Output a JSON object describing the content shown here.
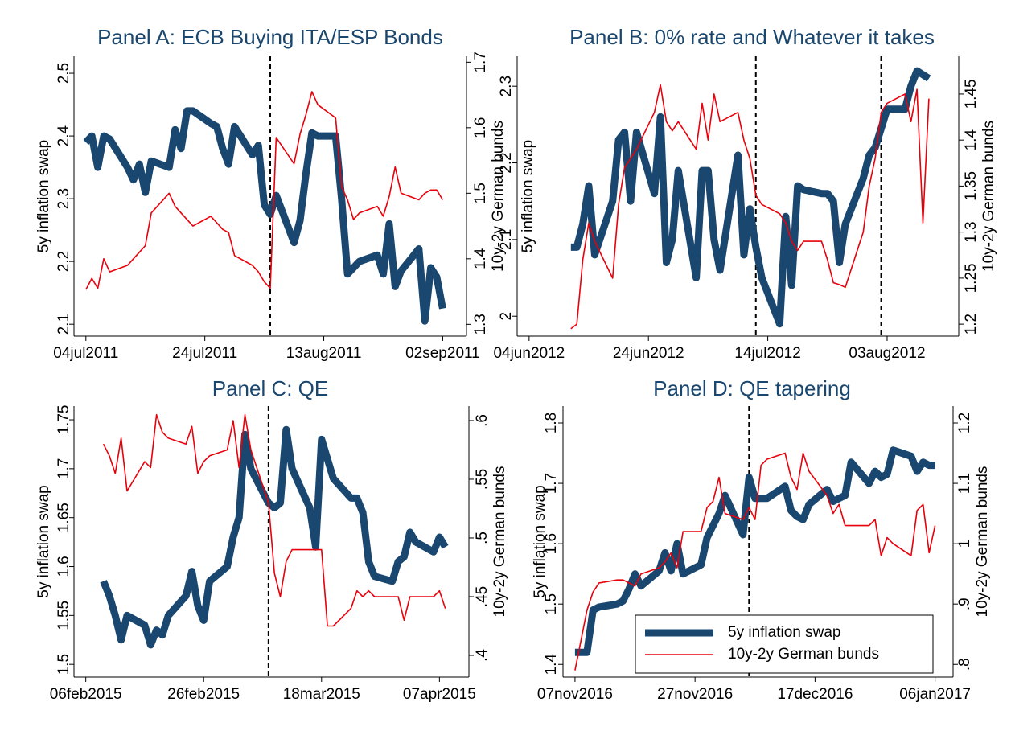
{
  "chart_data": [
    {
      "type": "line",
      "title": "Panel A: ECB Buying ITA/ESP Bonds",
      "ylabel": "5y inflation swap",
      "y2label": "10y-2y German bunds",
      "x": [
        "2011-07-04",
        "2011-07-05",
        "2011-07-06",
        "2011-07-07",
        "2011-07-08",
        "2011-07-11",
        "2011-07-12",
        "2011-07-13",
        "2011-07-14",
        "2011-07-15",
        "2011-07-18",
        "2011-07-19",
        "2011-07-20",
        "2011-07-21",
        "2011-07-22",
        "2011-07-25",
        "2011-07-26",
        "2011-07-27",
        "2011-07-28",
        "2011-07-29",
        "2011-08-01",
        "2011-08-02",
        "2011-08-03",
        "2011-08-04",
        "2011-08-05",
        "2011-08-08",
        "2011-08-09",
        "2011-08-10",
        "2011-08-11",
        "2011-08-12",
        "2011-08-15",
        "2011-08-16",
        "2011-08-17",
        "2011-08-18",
        "2011-08-19",
        "2011-08-22",
        "2011-08-23",
        "2011-08-24",
        "2011-08-25",
        "2011-08-26",
        "2011-08-29",
        "2011-08-30",
        "2011-08-31",
        "2011-09-01",
        "2011-09-02"
      ],
      "series": [
        {
          "name": "5y inflation swap",
          "color": "#1a476f",
          "axis": "y",
          "values": [
            2.39,
            2.4,
            2.35,
            2.4,
            2.395,
            2.35,
            2.33,
            2.355,
            2.31,
            2.36,
            2.35,
            2.41,
            2.38,
            2.44,
            2.44,
            2.42,
            2.415,
            2.38,
            2.355,
            2.415,
            2.37,
            2.385,
            2.29,
            2.275,
            2.305,
            2.23,
            2.265,
            2.34,
            2.405,
            2.4,
            2.4,
            2.3,
            2.18,
            2.19,
            2.2,
            2.21,
            2.18,
            2.26,
            2.16,
            2.185,
            2.22,
            2.105,
            2.19,
            2.175,
            2.125
          ]
        },
        {
          "name": "10y-2y German bunds",
          "color": "#e8000b",
          "axis": "y2",
          "values": [
            1.353,
            1.37,
            1.355,
            1.4,
            1.38,
            1.39,
            1.4,
            1.41,
            1.42,
            1.47,
            1.5,
            1.48,
            1.47,
            1.46,
            1.45,
            1.465,
            1.455,
            1.445,
            1.44,
            1.405,
            1.39,
            1.38,
            1.365,
            1.355,
            1.585,
            1.545,
            1.59,
            1.62,
            1.655,
            1.635,
            1.615,
            1.51,
            1.49,
            1.46,
            1.47,
            1.48,
            1.465,
            1.495,
            1.54,
            1.5,
            1.49,
            1.5,
            1.505,
            1.505,
            1.49
          ]
        }
      ],
      "xlim": [
        "2011-07-02",
        "2011-09-06"
      ],
      "xticks": [
        {
          "value": "2011-07-04",
          "label": "04jul2011"
        },
        {
          "value": "2011-07-24",
          "label": "24jul2011"
        },
        {
          "value": "2011-08-13",
          "label": "13aug2011"
        },
        {
          "value": "2011-09-02",
          "label": "02sep2011"
        }
      ],
      "ylim": [
        2.081,
        2.527
      ],
      "yticks": [
        2.1,
        2.2,
        2.3,
        2.4,
        2.5
      ],
      "y2lim": [
        1.282,
        1.709
      ],
      "y2ticks": [
        1.3,
        1.4,
        1.5,
        1.6,
        1.7
      ],
      "vlines": [
        "2011-08-04"
      ]
    },
    {
      "type": "line",
      "title": "Panel B: 0% rate and Whatever it takes",
      "ylabel": "5y inflation swap",
      "y2label": "10y-2y German bunds",
      "x": [
        "2012-06-11",
        "2012-06-12",
        "2012-06-13",
        "2012-06-14",
        "2012-06-15",
        "2012-06-18",
        "2012-06-19",
        "2012-06-20",
        "2012-06-21",
        "2012-06-22",
        "2012-06-25",
        "2012-06-26",
        "2012-06-27",
        "2012-06-28",
        "2012-06-29",
        "2012-07-02",
        "2012-07-03",
        "2012-07-04",
        "2012-07-05",
        "2012-07-06",
        "2012-07-09",
        "2012-07-10",
        "2012-07-11",
        "2012-07-12",
        "2012-07-13",
        "2012-07-16",
        "2012-07-17",
        "2012-07-18",
        "2012-07-19",
        "2012-07-20",
        "2012-07-23",
        "2012-07-24",
        "2012-07-25",
        "2012-07-26",
        "2012-07-27",
        "2012-07-30",
        "2012-07-31",
        "2012-08-01",
        "2012-08-02",
        "2012-08-03",
        "2012-08-06",
        "2012-08-07",
        "2012-08-08",
        "2012-08-09",
        "2012-08-10"
      ],
      "series": [
        {
          "name": "5y inflation swap",
          "color": "#1a476f",
          "axis": "y",
          "values": [
            2.09,
            2.09,
            2.12,
            2.17,
            2.08,
            2.15,
            2.23,
            2.24,
            2.15,
            2.24,
            2.16,
            2.26,
            2.07,
            2.1,
            2.19,
            2.05,
            2.19,
            2.19,
            2.1,
            2.06,
            2.21,
            2.08,
            2.14,
            2.09,
            2.05,
            1.99,
            2.13,
            2.04,
            2.17,
            2.165,
            2.16,
            2.16,
            2.15,
            2.07,
            2.12,
            2.18,
            2.21,
            2.22,
            2.245,
            2.27,
            2.27,
            2.3,
            2.32,
            2.315,
            2.31
          ]
        },
        {
          "name": "10y-2y German bunds",
          "color": "#e8000b",
          "axis": "y2",
          "values": [
            1.195,
            1.2,
            1.27,
            1.31,
            1.29,
            1.25,
            1.33,
            1.37,
            1.38,
            1.39,
            1.43,
            1.46,
            1.42,
            1.41,
            1.42,
            1.39,
            1.44,
            1.4,
            1.45,
            1.42,
            1.43,
            1.4,
            1.38,
            1.34,
            1.33,
            1.32,
            1.31,
            1.29,
            1.28,
            1.29,
            1.29,
            1.27,
            1.245,
            1.243,
            1.24,
            1.3,
            1.35,
            1.38,
            1.43,
            1.44,
            1.45,
            1.42,
            1.455,
            1.31,
            1.445
          ]
        }
      ],
      "xlim": [
        "2012-06-02",
        "2012-08-15"
      ],
      "xticks": [
        {
          "value": "2012-06-04",
          "label": "04jun2012"
        },
        {
          "value": "2012-06-24",
          "label": "24jun2012"
        },
        {
          "value": "2012-07-14",
          "label": "14jul2012"
        },
        {
          "value": "2012-08-03",
          "label": "03aug2012"
        }
      ],
      "ylim": [
        1.974,
        2.339
      ],
      "yticks": [
        2,
        2.1,
        2.2,
        2.3
      ],
      "y2lim": [
        1.187,
        1.491
      ],
      "y2ticks": [
        1.2,
        1.25,
        1.3,
        1.35,
        1.4,
        1.45
      ],
      "vlines": [
        "2012-07-12",
        "2012-08-02"
      ]
    },
    {
      "type": "line",
      "title": "Panel C: QE",
      "ylabel": "5y inflation swap",
      "y2label": "10y-2y German bunds",
      "x": [
        "2015-02-09",
        "2015-02-10",
        "2015-02-11",
        "2015-02-12",
        "2015-02-13",
        "2015-02-16",
        "2015-02-17",
        "2015-02-18",
        "2015-02-19",
        "2015-02-20",
        "2015-02-23",
        "2015-02-24",
        "2015-02-25",
        "2015-02-26",
        "2015-02-27",
        "2015-03-02",
        "2015-03-03",
        "2015-03-04",
        "2015-03-05",
        "2015-03-06",
        "2015-03-09",
        "2015-03-10",
        "2015-03-11",
        "2015-03-12",
        "2015-03-13",
        "2015-03-16",
        "2015-03-17",
        "2015-03-18",
        "2015-03-19",
        "2015-03-20",
        "2015-03-23",
        "2015-03-24",
        "2015-03-25",
        "2015-03-26",
        "2015-03-27",
        "2015-03-30",
        "2015-03-31",
        "2015-04-01",
        "2015-04-02",
        "2015-04-03",
        "2015-04-06",
        "2015-04-07",
        "2015-04-08"
      ],
      "series": [
        {
          "name": "5y inflation swap",
          "color": "#1a476f",
          "axis": "y",
          "values": [
            1.585,
            1.57,
            1.55,
            1.525,
            1.55,
            1.54,
            1.52,
            1.535,
            1.53,
            1.55,
            1.57,
            1.595,
            1.56,
            1.545,
            1.585,
            1.6,
            1.63,
            1.65,
            1.735,
            1.7,
            1.665,
            1.66,
            1.665,
            1.74,
            1.7,
            1.66,
            1.62,
            1.73,
            1.71,
            1.69,
            1.67,
            1.67,
            1.655,
            1.605,
            1.59,
            1.585,
            1.605,
            1.61,
            1.635,
            1.625,
            1.615,
            1.63,
            1.62
          ]
        },
        {
          "name": "10y-2y German bunds",
          "color": "#e8000b",
          "axis": "y2",
          "values": [
            0.58,
            0.57,
            0.555,
            0.585,
            0.54,
            0.565,
            0.56,
            0.605,
            0.59,
            0.585,
            0.58,
            0.595,
            0.555,
            0.565,
            0.57,
            0.575,
            0.6,
            0.56,
            0.605,
            0.575,
            0.53,
            0.47,
            0.45,
            0.48,
            0.49,
            0.49,
            0.49,
            0.49,
            0.425,
            0.425,
            0.44,
            0.455,
            0.45,
            0.455,
            0.45,
            0.45,
            0.45,
            0.43,
            0.45,
            0.45,
            0.45,
            0.455,
            0.44
          ]
        }
      ],
      "xlim": [
        "2015-02-04",
        "2015-04-12"
      ],
      "xticks": [
        {
          "value": "2015-02-06",
          "label": "06feb2015"
        },
        {
          "value": "2015-02-26",
          "label": "26feb2015"
        },
        {
          "value": "2015-03-18",
          "label": "18mar2015"
        },
        {
          "value": "2015-04-07",
          "label": "07apr2015"
        }
      ],
      "ylim": [
        1.487,
        1.764
      ],
      "yticks": [
        1.5,
        1.55,
        1.6,
        1.65,
        1.7,
        1.75
      ],
      "y2lim": [
        0.3815,
        0.6123
      ],
      "y2ticks": [
        {
          "value": 0.4,
          "label": ".4"
        },
        {
          "value": 0.45,
          "label": ".45"
        },
        {
          "value": 0.5,
          "label": ".5"
        },
        {
          "value": 0.55,
          "label": ".55"
        },
        {
          "value": 0.6,
          "label": ".6"
        }
      ],
      "vlines": [
        "2015-03-09"
      ]
    },
    {
      "type": "line",
      "title": "Panel D: QE tapering",
      "ylabel": "5y inflation swap",
      "y2label": "10y-2y German bunds",
      "x": [
        "2016-11-07",
        "2016-11-08",
        "2016-11-09",
        "2016-11-10",
        "2016-11-11",
        "2016-11-14",
        "2016-11-15",
        "2016-11-16",
        "2016-11-17",
        "2016-11-18",
        "2016-11-21",
        "2016-11-22",
        "2016-11-23",
        "2016-11-24",
        "2016-11-25",
        "2016-11-28",
        "2016-11-29",
        "2016-11-30",
        "2016-12-01",
        "2016-12-02",
        "2016-12-05",
        "2016-12-06",
        "2016-12-07",
        "2016-12-08",
        "2016-12-09",
        "2016-12-12",
        "2016-12-13",
        "2016-12-14",
        "2016-12-15",
        "2016-12-16",
        "2016-12-19",
        "2016-12-20",
        "2016-12-21",
        "2016-12-22",
        "2016-12-23",
        "2016-12-26",
        "2016-12-27",
        "2016-12-28",
        "2016-12-29",
        "2016-12-30",
        "2017-01-02",
        "2017-01-03",
        "2017-01-04",
        "2017-01-05",
        "2017-01-06"
      ],
      "series": [
        {
          "name": "5y inflation swap",
          "color": "#1a476f",
          "axis": "y",
          "values": [
            1.42,
            1.42,
            1.42,
            1.49,
            1.495,
            1.5,
            1.505,
            1.525,
            1.55,
            1.53,
            1.555,
            1.585,
            1.555,
            1.6,
            1.55,
            1.565,
            1.61,
            1.63,
            1.65,
            1.68,
            1.615,
            1.71,
            1.675,
            1.675,
            1.675,
            1.695,
            1.655,
            1.645,
            1.64,
            1.665,
            1.69,
            1.67,
            1.675,
            1.68,
            1.735,
            1.7,
            1.72,
            1.71,
            1.715,
            1.755,
            1.745,
            1.72,
            1.735,
            1.73,
            1.73
          ]
        },
        {
          "name": "10y-2y German bunds",
          "color": "#e8000b",
          "axis": "y2",
          "values": [
            0.79,
            0.84,
            0.89,
            0.92,
            0.935,
            0.94,
            0.94,
            0.935,
            0.93,
            0.95,
            0.96,
            0.97,
            0.985,
            0.96,
            1.02,
            1.02,
            1.06,
            1.07,
            1.11,
            1.05,
            1.04,
            1.06,
            1.04,
            1.13,
            1.14,
            1.15,
            1.11,
            1.09,
            1.15,
            1.12,
            1.08,
            1.05,
            1.065,
            1.03,
            1.03,
            1.03,
            1.04,
            0.98,
            1.01,
            1.0,
            0.98,
            1.055,
            1.065,
            0.985,
            1.03
          ]
        }
      ],
      "xlim": [
        "2016-11-05",
        "2017-01-09"
      ],
      "xticks": [
        {
          "value": "2016-11-07",
          "label": "07nov2016"
        },
        {
          "value": "2016-11-27",
          "label": "27nov2016"
        },
        {
          "value": "2016-12-17",
          "label": "17dec2016"
        },
        {
          "value": "2017-01-06",
          "label": "06jan2017"
        }
      ],
      "ylim": [
        1.379,
        1.828
      ],
      "yticks": [
        1.4,
        1.5,
        1.6,
        1.7,
        1.8
      ],
      "y2lim": [
        0.779,
        1.228
      ],
      "y2ticks": [
        {
          "value": 0.8,
          "label": ".8"
        },
        {
          "value": 0.9,
          "label": ".9"
        },
        1,
        1.1,
        1.2
      ],
      "vlines": [
        "2016-12-06"
      ],
      "legend": "bottom right"
    }
  ]
}
